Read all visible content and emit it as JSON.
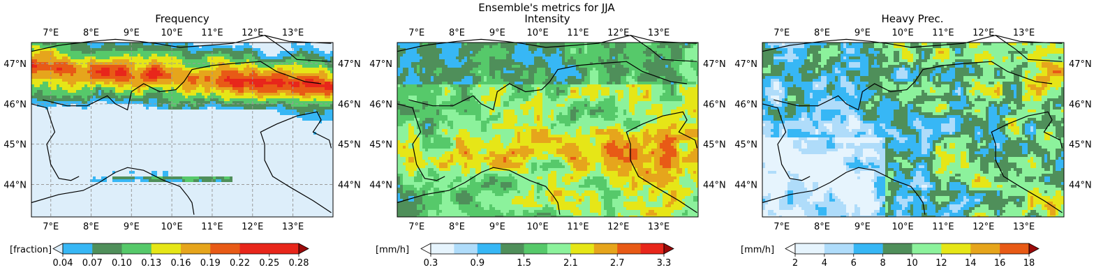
{
  "figure": {
    "suptitle": "Ensemble's metrics for JJA"
  },
  "panels": [
    {
      "title": "Frequency",
      "lon_ticks": [
        "7°E",
        "8°E",
        "9°E",
        "10°E",
        "11°E",
        "12°E",
        "13°E"
      ],
      "lat_ticks": [
        "47°N",
        "46°N",
        "45°N",
        "44°N"
      ],
      "grid_visible": true,
      "colorbar": {
        "label": "[fraction]",
        "ticks": [
          "0.04",
          "0.07",
          "0.10",
          "0.13",
          "0.16",
          "0.19",
          "0.22",
          "0.25",
          "0.28"
        ],
        "under_color": "#ddeefa",
        "over_color": "#9a0a0a",
        "colors": [
          "#37b7f5",
          "#4f8f5a",
          "#56c96a",
          "#e6e617",
          "#e6a51c",
          "#e85a16",
          "#e8261b",
          "#e8261b"
        ]
      },
      "field_colors": [
        "#ddeefa",
        "#37b7f5",
        "#4f8f5a",
        "#56c96a",
        "#e6e617",
        "#e6a51c",
        "#e85a16",
        "#e8261b"
      ]
    },
    {
      "title": "Intensity",
      "lon_ticks": [
        "7°E",
        "8°E",
        "9°E",
        "10°E",
        "11°E",
        "12°E",
        "13°E"
      ],
      "lat_ticks": [
        "47°N",
        "46°N",
        "45°N",
        "44°N"
      ],
      "grid_visible": false,
      "colorbar": {
        "label": "[mm/h]",
        "ticks": [
          "0.3",
          "0.9",
          "1.5",
          "2.1",
          "2.7",
          "3.3"
        ],
        "under_color": "#ffffff",
        "over_color": "#9a0a0a",
        "colors": [
          "#e6f4fd",
          "#afdcfa",
          "#37b7f5",
          "#4f8f5a",
          "#56c96a",
          "#8cf29c",
          "#e6e617",
          "#e6a51c",
          "#e85a16",
          "#e8261b"
        ]
      },
      "field_colors": [
        "#37b7f5",
        "#4f8f5a",
        "#56c96a",
        "#8cf29c",
        "#e6e617",
        "#e6a51c",
        "#e85a16"
      ]
    },
    {
      "title": "Heavy Prec.",
      "lon_ticks": [
        "7°E",
        "8°E",
        "9°E",
        "10°E",
        "11°E",
        "12°E",
        "13°E"
      ],
      "lat_ticks": [
        "47°N",
        "46°N",
        "45°N",
        "44°N"
      ],
      "grid_visible": false,
      "colorbar": {
        "label": "[mm/h]",
        "ticks": [
          "2",
          "4",
          "6",
          "8",
          "10",
          "12",
          "14",
          "16",
          "18"
        ],
        "under_color": "#ffffff",
        "over_color": "#9a0a0a",
        "colors": [
          "#e6f4fd",
          "#afdcfa",
          "#37b7f5",
          "#4f8f5a",
          "#8cf29c",
          "#e6e617",
          "#e6a51c",
          "#e85a16"
        ]
      },
      "field_colors": [
        "#e6f4fd",
        "#afdcfa",
        "#37b7f5",
        "#4f8f5a",
        "#8cf29c",
        "#e6e617",
        "#e6a51c",
        "#e85a16"
      ]
    }
  ]
}
